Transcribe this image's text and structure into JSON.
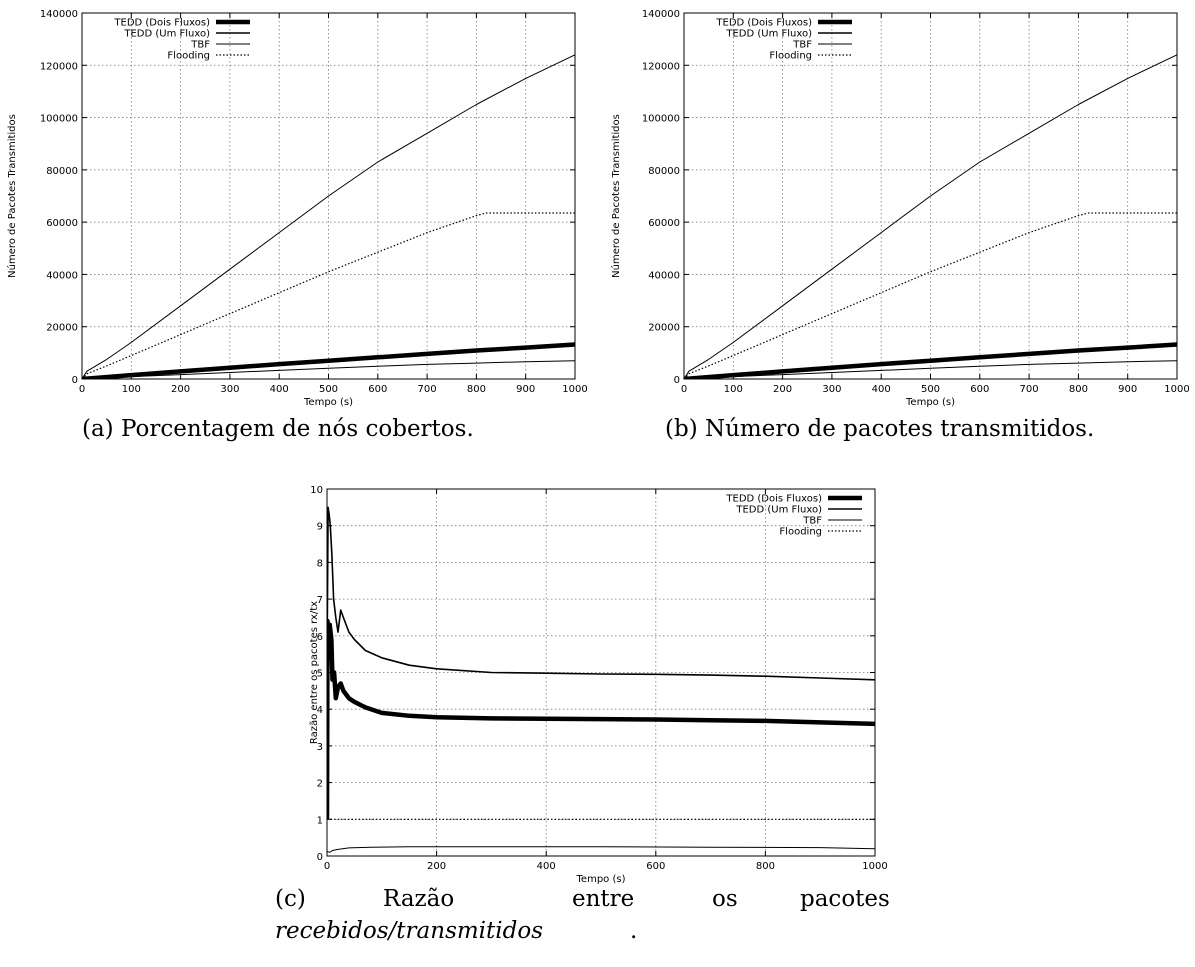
{
  "captions": {
    "a": "(a) Porcentagem de nós cobertos.",
    "b": "(b) Número de pacotes transmitidos.",
    "c_1": "(c)",
    "c_2": "Razão",
    "c_3": "entre",
    "c_4": "os",
    "c_5": "pacotes",
    "c_6": "recebidos/transmitidos",
    "c_7": "."
  },
  "chart_data": [
    {
      "id": "a",
      "type": "line",
      "xlabel": "Tempo (s)",
      "ylabel": "Número de Pacotes Transmitidos",
      "xlim": [
        0,
        1000
      ],
      "ylim": [
        0,
        140000
      ],
      "xticks": [
        0,
        100,
        200,
        300,
        400,
        500,
        600,
        700,
        800,
        900,
        1000
      ],
      "yticks": [
        0,
        20000,
        40000,
        60000,
        80000,
        100000,
        120000,
        140000
      ],
      "grid": true,
      "legend_position": "top-left",
      "series": [
        {
          "name": "TEDD (Dois Fluxos)",
          "style": "thick",
          "x": [
            0,
            100,
            200,
            300,
            400,
            500,
            600,
            700,
            800,
            900,
            1000
          ],
          "y": [
            0,
            1500,
            2900,
            4300,
            5700,
            7000,
            8300,
            9600,
            10900,
            12000,
            13200
          ]
        },
        {
          "name": "TEDD (Um Fluxo)",
          "style": "medium",
          "x": [],
          "y": []
        },
        {
          "name": "TBF",
          "style": "thin",
          "x": [
            0,
            100,
            200,
            300,
            400,
            500,
            600,
            700,
            800,
            900,
            1000
          ],
          "y": [
            0,
            900,
            1700,
            2500,
            3300,
            4100,
            4900,
            5600,
            6100,
            6600,
            7000
          ]
        },
        {
          "name": "Flooding",
          "style": "dotted",
          "x": [
            0,
            10,
            50,
            100,
            200,
            300,
            400,
            500,
            600,
            700,
            800,
            820,
            850,
            900,
            1000
          ],
          "y": [
            0,
            2000,
            5000,
            9000,
            17000,
            25000,
            33000,
            41000,
            48500,
            56000,
            62500,
            63500,
            63500,
            63500,
            63500
          ]
        },
        {
          "name": "",
          "style": "thin",
          "x": [
            0,
            10,
            50,
            100,
            200,
            300,
            400,
            500,
            600,
            700,
            800,
            900,
            1000
          ],
          "y": [
            0,
            3000,
            7500,
            14000,
            28000,
            42000,
            56000,
            70000,
            83000,
            94000,
            105000,
            115000,
            124000
          ]
        }
      ]
    },
    {
      "id": "b",
      "type": "line",
      "xlabel": "Tempo (s)",
      "ylabel": "Número de Pacotes Transmitidos",
      "xlim": [
        0,
        1000
      ],
      "ylim": [
        0,
        140000
      ],
      "xticks": [
        0,
        100,
        200,
        300,
        400,
        500,
        600,
        700,
        800,
        900,
        1000
      ],
      "yticks": [
        0,
        20000,
        40000,
        60000,
        80000,
        100000,
        120000,
        140000
      ],
      "grid": true,
      "legend_position": "top-left",
      "series": [
        {
          "name": "TEDD (Dois Fluxos)",
          "style": "thick",
          "x": [
            0,
            100,
            200,
            300,
            400,
            500,
            600,
            700,
            800,
            900,
            1000
          ],
          "y": [
            0,
            1500,
            2900,
            4300,
            5700,
            7000,
            8300,
            9600,
            10900,
            12000,
            13200
          ]
        },
        {
          "name": "TEDD (Um Fluxo)",
          "style": "medium",
          "x": [],
          "y": []
        },
        {
          "name": "TBF",
          "style": "thin",
          "x": [
            0,
            100,
            200,
            300,
            400,
            500,
            600,
            700,
            800,
            900,
            1000
          ],
          "y": [
            0,
            900,
            1700,
            2500,
            3300,
            4100,
            4900,
            5600,
            6100,
            6600,
            7000
          ]
        },
        {
          "name": "Flooding",
          "style": "dotted",
          "x": [
            0,
            10,
            50,
            100,
            200,
            300,
            400,
            500,
            600,
            700,
            800,
            820,
            850,
            900,
            1000
          ],
          "y": [
            0,
            2000,
            5000,
            9000,
            17000,
            25000,
            33000,
            41000,
            48500,
            56000,
            62500,
            63500,
            63500,
            63500,
            63500
          ]
        },
        {
          "name": "",
          "style": "thin",
          "x": [
            0,
            10,
            50,
            100,
            200,
            300,
            400,
            500,
            600,
            700,
            800,
            900,
            1000
          ],
          "y": [
            0,
            3000,
            7500,
            14000,
            28000,
            42000,
            56000,
            70000,
            83000,
            94000,
            105000,
            115000,
            124000
          ]
        }
      ]
    },
    {
      "id": "c",
      "type": "line",
      "xlabel": "Tempo (s)",
      "ylabel": "Razão entre os pacotes rx/tx",
      "xlim": [
        0,
        1000
      ],
      "ylim": [
        0,
        10
      ],
      "xticks": [
        0,
        200,
        400,
        600,
        800,
        1000
      ],
      "yticks": [
        0,
        1,
        2,
        3,
        4,
        5,
        6,
        7,
        8,
        9,
        10
      ],
      "grid": true,
      "legend_position": "top-right",
      "series": [
        {
          "name": "TEDD (Dois Fluxos)",
          "style": "thick",
          "x": [
            0,
            1,
            3,
            5,
            8,
            10,
            13,
            16,
            20,
            25,
            30,
            40,
            50,
            70,
            100,
            150,
            200,
            300,
            400,
            500,
            600,
            700,
            800,
            900,
            1000
          ],
          "y": [
            1,
            6.4,
            5.5,
            6.3,
            5.9,
            4.8,
            5.0,
            4.3,
            4.6,
            4.7,
            4.5,
            4.3,
            4.2,
            4.05,
            3.9,
            3.82,
            3.78,
            3.75,
            3.74,
            3.73,
            3.72,
            3.7,
            3.68,
            3.64,
            3.6
          ]
        },
        {
          "name": "TEDD (Um Fluxo)",
          "style": "medium",
          "x": [
            0,
            2,
            4,
            6,
            9,
            12,
            16,
            20,
            25,
            30,
            40,
            50,
            70,
            100,
            150,
            200,
            300,
            400,
            500,
            600,
            700,
            800,
            900,
            1000
          ],
          "y": [
            5,
            9.5,
            9.3,
            9.0,
            8.2,
            7.0,
            6.5,
            6.1,
            6.7,
            6.5,
            6.1,
            5.9,
            5.6,
            5.4,
            5.2,
            5.1,
            5.0,
            4.98,
            4.96,
            4.95,
            4.93,
            4.9,
            4.85,
            4.8
          ]
        },
        {
          "name": "TBF",
          "style": "thin",
          "x": [
            0,
            5,
            10,
            20,
            40,
            80,
            150,
            300,
            500,
            700,
            900,
            1000
          ],
          "y": [
            0.12,
            0.1,
            0.15,
            0.18,
            0.22,
            0.24,
            0.25,
            0.25,
            0.25,
            0.24,
            0.23,
            0.2
          ]
        },
        {
          "name": "Flooding",
          "style": "dotted",
          "x": [
            0,
            1000
          ],
          "y": [
            1,
            1
          ]
        }
      ]
    }
  ]
}
